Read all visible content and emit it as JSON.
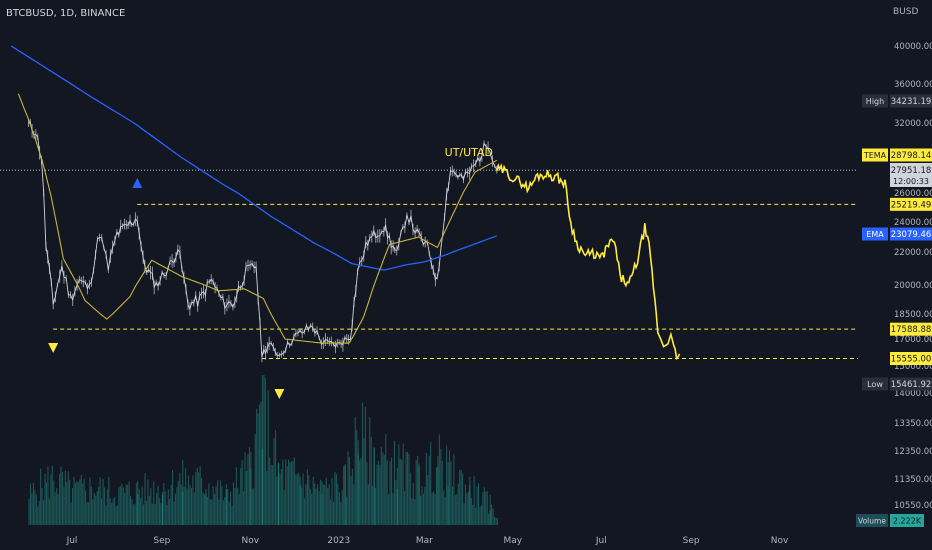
{
  "header": {
    "symbol": "BTCBUSD, 1D, BINANCE"
  },
  "currency": "BUSD",
  "annotation": "UT/UTAD",
  "chart_data": {
    "type": "line",
    "price_ticks": [
      "40000.00",
      "36000.00",
      "32000.00",
      "26000.00",
      "24000.00",
      "22000.00",
      "20000.00",
      "18500.00",
      "17000.00",
      "15000.00",
      "14000.00",
      "13350.00",
      "12350.00",
      "11350.00",
      "10550.00"
    ],
    "x_ticks": [
      "Jul",
      "Sep",
      "Nov",
      "2023",
      "Mar",
      "May",
      "Jul",
      "Sep",
      "Nov"
    ],
    "levels": {
      "upper": 25219.49,
      "middle": 17588.88,
      "lower": 15555.0
    },
    "price_labels": {
      "high": {
        "label": "High",
        "value": "34231.19"
      },
      "tema": {
        "label": "TEMA",
        "value": "28798.14"
      },
      "last": {
        "value": "27951.18",
        "countdown": "12:00:33"
      },
      "upper": {
        "value": "25219.49"
      },
      "ema": {
        "label": "EMA",
        "value": "23079.46"
      },
      "middle": {
        "value": "17588.88"
      },
      "lower": {
        "value": "15555.00"
      },
      "low": {
        "label": "Low",
        "value": "15461.92"
      },
      "volume": {
        "label": "Volume",
        "value": "2.222K"
      }
    },
    "price_series": [
      [
        "2022-06-01",
        31800
      ],
      [
        "2022-06-06",
        31300
      ],
      [
        "2022-06-10",
        29000
      ],
      [
        "2022-06-13",
        22500
      ],
      [
        "2022-06-18",
        19000
      ],
      [
        "2022-06-24",
        21100
      ],
      [
        "2022-06-30",
        19300
      ],
      [
        "2022-07-06",
        20300
      ],
      [
        "2022-07-13",
        19800
      ],
      [
        "2022-07-20",
        23300
      ],
      [
        "2022-07-26",
        21000
      ],
      [
        "2022-08-01",
        23200
      ],
      [
        "2022-08-10",
        23900
      ],
      [
        "2022-08-15",
        24300
      ],
      [
        "2022-08-19",
        21400
      ],
      [
        "2022-08-28",
        20000
      ],
      [
        "2022-09-08",
        21400
      ],
      [
        "2022-09-12",
        22300
      ],
      [
        "2022-09-19",
        19000
      ],
      [
        "2022-09-27",
        19200
      ],
      [
        "2022-10-05",
        20300
      ],
      [
        "2022-10-13",
        19100
      ],
      [
        "2022-10-20",
        19000
      ],
      [
        "2022-10-29",
        20800
      ],
      [
        "2022-11-05",
        21200
      ],
      [
        "2022-11-09",
        15900
      ],
      [
        "2022-11-14",
        16600
      ],
      [
        "2022-11-21",
        15800
      ],
      [
        "2022-12-01",
        17100
      ],
      [
        "2022-12-14",
        17800
      ],
      [
        "2022-12-20",
        16800
      ],
      [
        "2022-12-31",
        16550
      ],
      [
        "2023-01-09",
        17200
      ],
      [
        "2023-01-14",
        20800
      ],
      [
        "2023-01-21",
        22700
      ],
      [
        "2023-02-01",
        23700
      ],
      [
        "2023-02-10",
        21800
      ],
      [
        "2023-02-17",
        24600
      ],
      [
        "2023-02-24",
        23200
      ],
      [
        "2023-03-03",
        22300
      ],
      [
        "2023-03-10",
        20200
      ],
      [
        "2023-03-15",
        24700
      ],
      [
        "2023-03-19",
        28000
      ],
      [
        "2023-03-28",
        27200
      ],
      [
        "2023-04-04",
        28200
      ],
      [
        "2023-04-14",
        30400
      ],
      [
        "2023-04-20",
        28000
      ]
    ],
    "projection_series": [
      [
        "2023-04-20",
        28000
      ],
      [
        "2023-04-25",
        27900
      ],
      [
        "2023-05-01",
        27300
      ],
      [
        "2023-05-06",
        27000
      ],
      [
        "2023-05-12",
        26400
      ],
      [
        "2023-05-18",
        27500
      ],
      [
        "2023-05-25",
        27600
      ],
      [
        "2023-06-01",
        27300
      ],
      [
        "2023-06-06",
        26800
      ],
      [
        "2023-06-10",
        23900
      ],
      [
        "2023-06-14",
        22600
      ],
      [
        "2023-06-20",
        21800
      ],
      [
        "2023-06-26",
        21900
      ],
      [
        "2023-07-01",
        21600
      ],
      [
        "2023-07-06",
        22500
      ],
      [
        "2023-07-10",
        22700
      ],
      [
        "2023-07-14",
        20500
      ],
      [
        "2023-07-20",
        20000
      ],
      [
        "2023-07-26",
        21500
      ],
      [
        "2023-07-31",
        23600
      ],
      [
        "2023-08-03",
        22300
      ],
      [
        "2023-08-06",
        20000
      ],
      [
        "2023-08-09",
        17500
      ],
      [
        "2023-08-13",
        16500
      ],
      [
        "2023-08-18",
        17100
      ],
      [
        "2023-08-22",
        15700
      ],
      [
        "2023-08-24",
        15900
      ]
    ],
    "ema_series": [
      [
        "2022-05-20",
        40000
      ],
      [
        "2022-06-15",
        37500
      ],
      [
        "2022-07-15",
        34600
      ],
      [
        "2022-08-15",
        31800
      ],
      [
        "2022-09-15",
        29000
      ],
      [
        "2022-10-15",
        26600
      ],
      [
        "2022-11-15",
        24400
      ],
      [
        "2022-12-15",
        22600
      ],
      [
        "2023-01-10",
        21300
      ],
      [
        "2023-02-01",
        20900
      ],
      [
        "2023-02-15",
        21200
      ],
      [
        "2023-03-01",
        21400
      ],
      [
        "2023-03-15",
        21800
      ],
      [
        "2023-04-01",
        22400
      ],
      [
        "2023-04-20",
        23079.46
      ]
    ],
    "tema_series": [
      [
        "2022-05-25",
        35000
      ],
      [
        "2022-06-10",
        29000
      ],
      [
        "2022-06-25",
        21600
      ],
      [
        "2022-07-10",
        19200
      ],
      [
        "2022-07-25",
        18200
      ],
      [
        "2022-08-10",
        19400
      ],
      [
        "2022-08-25",
        21500
      ],
      [
        "2022-09-15",
        20500
      ],
      [
        "2022-10-10",
        19700
      ],
      [
        "2022-10-28",
        19800
      ],
      [
        "2022-11-10",
        19300
      ],
      [
        "2022-11-25",
        17000
      ],
      [
        "2022-12-20",
        16700
      ],
      [
        "2023-01-08",
        16700
      ],
      [
        "2023-01-18",
        18300
      ],
      [
        "2023-02-05",
        22500
      ],
      [
        "2023-02-25",
        23000
      ],
      [
        "2023-03-10",
        22300
      ],
      [
        "2023-03-22",
        24800
      ],
      [
        "2023-04-05",
        27800
      ],
      [
        "2023-04-20",
        28798.14
      ]
    ],
    "markers": [
      {
        "date": "2022-06-18",
        "dir": "down"
      },
      {
        "date": "2022-08-15",
        "dir": "up"
      },
      {
        "date": "2022-11-21",
        "dir": "down"
      }
    ],
    "volume_series": [
      [
        "2022-06-01",
        0.55
      ],
      [
        "2022-06-10",
        0.75
      ],
      [
        "2022-06-18",
        0.9
      ],
      [
        "2022-07-01",
        0.65
      ],
      [
        "2022-07-15",
        0.7
      ],
      [
        "2022-08-01",
        0.6
      ],
      [
        "2022-08-15",
        0.65
      ],
      [
        "2022-09-01",
        0.7
      ],
      [
        "2022-09-15",
        0.85
      ],
      [
        "2022-10-01",
        0.8
      ],
      [
        "2022-10-15",
        0.55
      ],
      [
        "2022-11-01",
        1.1
      ],
      [
        "2022-11-09",
        2.3
      ],
      [
        "2022-11-20",
        1.0
      ],
      [
        "2022-12-05",
        0.9
      ],
      [
        "2022-12-20",
        0.65
      ],
      [
        "2023-01-05",
        0.8
      ],
      [
        "2023-01-14",
        1.7
      ],
      [
        "2023-01-25",
        1.3
      ],
      [
        "2023-02-10",
        1.1
      ],
      [
        "2023-02-25",
        0.9
      ],
      [
        "2023-03-10",
        1.2
      ],
      [
        "2023-03-17",
        1.0
      ],
      [
        "2023-04-01",
        0.7
      ],
      [
        "2023-04-15",
        0.4
      ],
      [
        "2023-04-20",
        0.15
      ]
    ],
    "colors": {
      "background": "#131722",
      "price": "#d1d4dc",
      "projection": "#ffeb3b",
      "ema": "#2962ff",
      "tema": "#c9b53c",
      "levels": "#ffeb3b",
      "volume": "#26a69a",
      "marker_down": "#ffeb3b",
      "marker_up": "#2962ff",
      "text": "#b2b5be"
    }
  }
}
